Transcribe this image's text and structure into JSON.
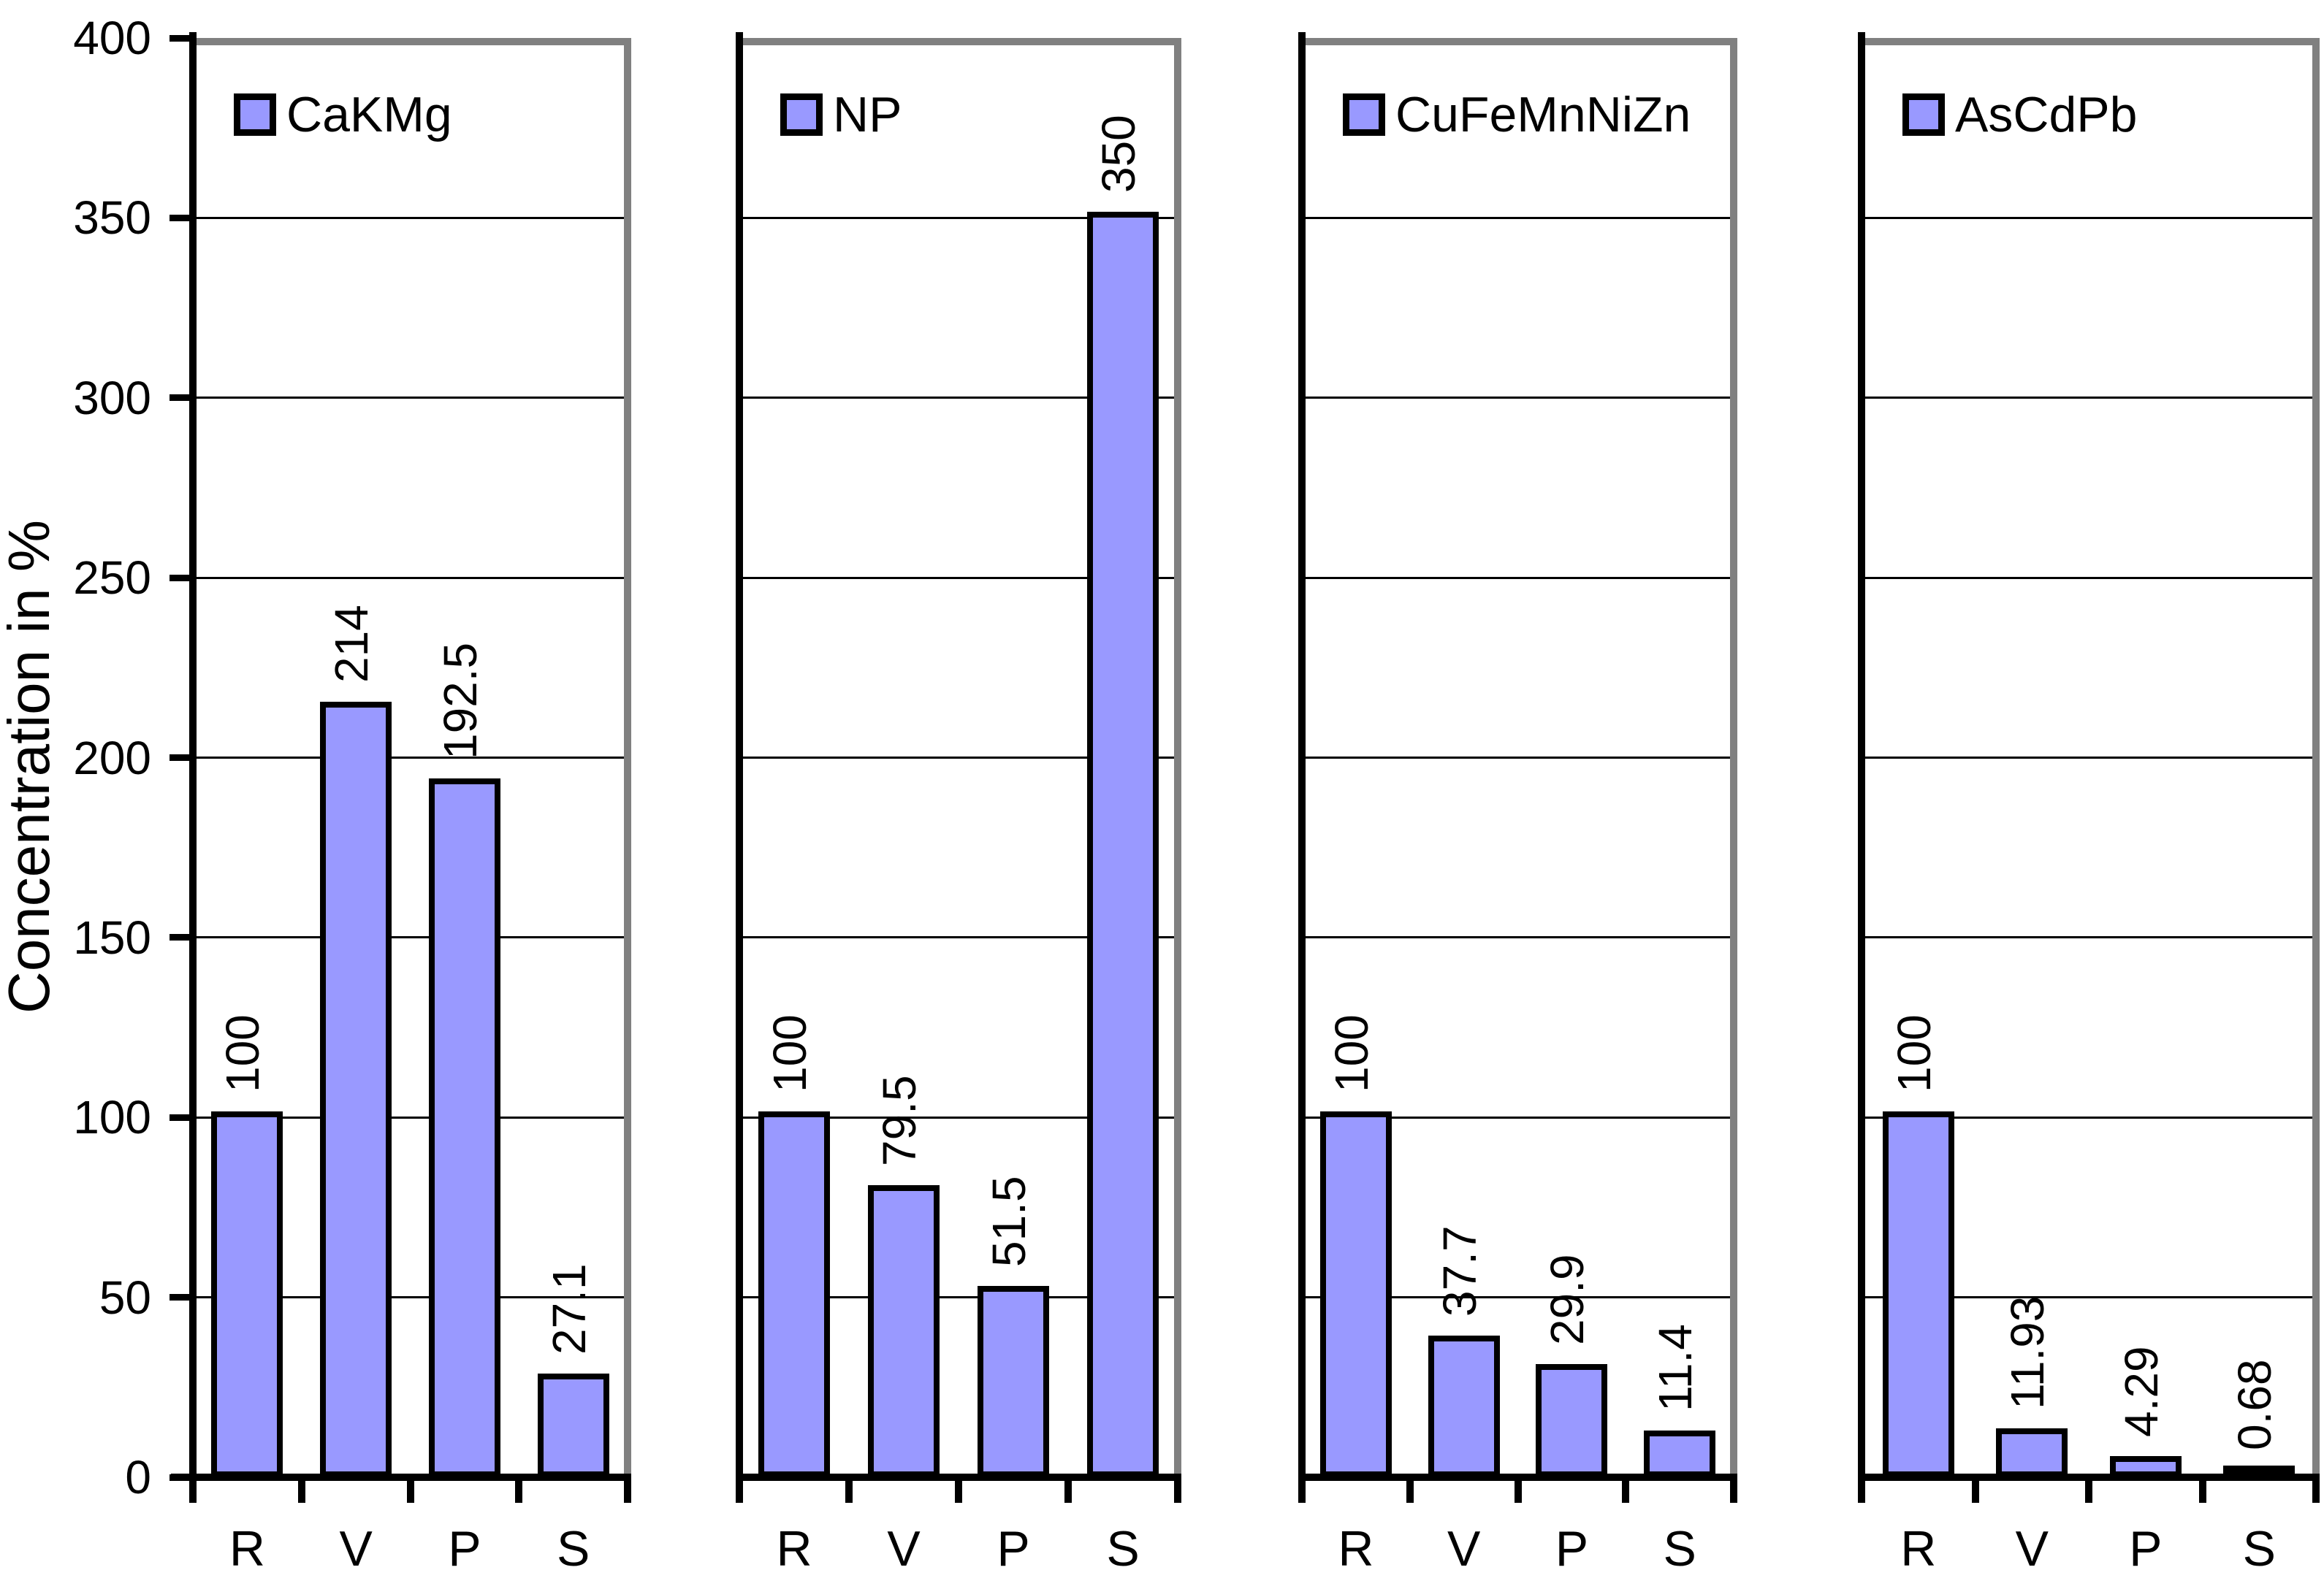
{
  "chart_data": {
    "type": "bar",
    "title": "",
    "ylabel": "Concentration in %",
    "ylim": [
      0,
      400
    ],
    "ytick_interval": 50,
    "ytick_labels": [
      "400",
      "350",
      "300",
      "250",
      "200",
      "150",
      "100",
      "50",
      "0"
    ],
    "categories": [
      "R",
      "V",
      "P",
      "S"
    ],
    "grid": true,
    "legend_position": "top-left-inside",
    "panels": [
      {
        "legend": "CaKMg",
        "values": [
          100,
          214,
          192.5,
          27.1
        ],
        "data_labels": [
          "100",
          "214",
          "192.5",
          "27.1"
        ]
      },
      {
        "legend": "NP",
        "values": [
          100,
          79.5,
          51.5,
          350
        ],
        "data_labels": [
          "100",
          "79.5",
          "51.5",
          "350"
        ]
      },
      {
        "legend": "CuFeMnNiZn",
        "values": [
          100,
          37.7,
          29.9,
          11.4
        ],
        "data_labels": [
          "100",
          "37.7",
          "29.9",
          "11.4"
        ]
      },
      {
        "legend": "AsCdPb",
        "values": [
          100,
          11.93,
          4.29,
          0.68
        ],
        "data_labels": [
          "100",
          "11.93",
          "4.29",
          "0.68"
        ]
      }
    ],
    "colors": {
      "bar_fill": "#9999FF",
      "bar_border": "#000000",
      "axis": "#000000",
      "plot_border_gray": "#808080",
      "background": "#FFFFFF",
      "text": "#000000"
    }
  }
}
